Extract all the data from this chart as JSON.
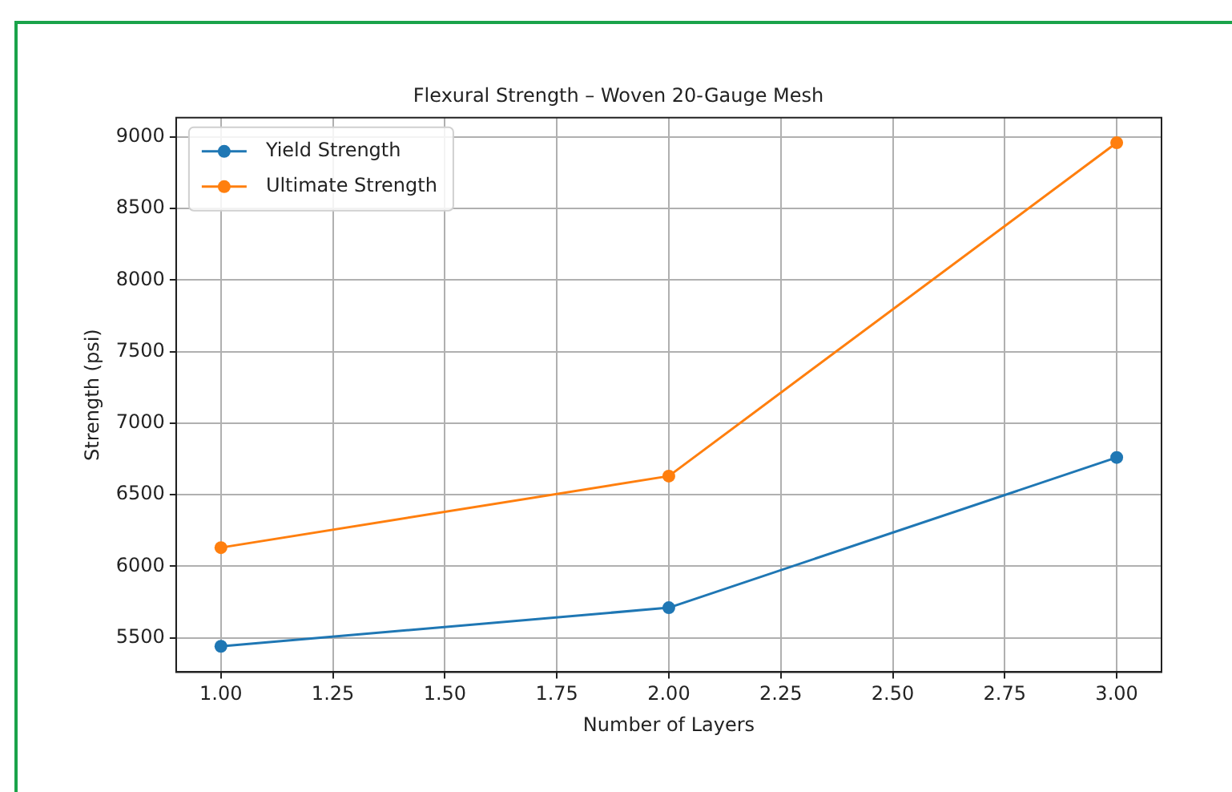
{
  "chart_data": {
    "type": "line",
    "title": "Flexural Strength – Woven 20-Gauge Mesh",
    "xlabel": "Number of Layers",
    "ylabel": "Strength (psi)",
    "x": [
      1,
      2,
      3
    ],
    "series": [
      {
        "name": "Yield Strength",
        "color": "#1f77b4",
        "values": [
          5440,
          5710,
          6760
        ]
      },
      {
        "name": "Ultimate Strength",
        "color": "#ff7f0e",
        "values": [
          6130,
          6630,
          8960
        ]
      }
    ],
    "xlim": [
      0.9,
      3.1
    ],
    "xticks": [
      {
        "value": 1,
        "label": "1.00"
      },
      {
        "value": 1.25,
        "label": "1.25"
      },
      {
        "value": 1.5,
        "label": "1.50"
      },
      {
        "value": 1.75,
        "label": "1.75"
      },
      {
        "value": 2,
        "label": "2.00"
      },
      {
        "value": 2.25,
        "label": "2.25"
      },
      {
        "value": 2.5,
        "label": "2.50"
      },
      {
        "value": 2.75,
        "label": "2.75"
      },
      {
        "value": 3,
        "label": "3.00"
      }
    ],
    "ylim": [
      5260,
      9135
    ],
    "yticks": [
      5500,
      6000,
      6500,
      7000,
      7500,
      8000,
      8500,
      9000
    ],
    "grid": true,
    "legend": "top left",
    "marker": "circle",
    "line_style": "solid"
  }
}
